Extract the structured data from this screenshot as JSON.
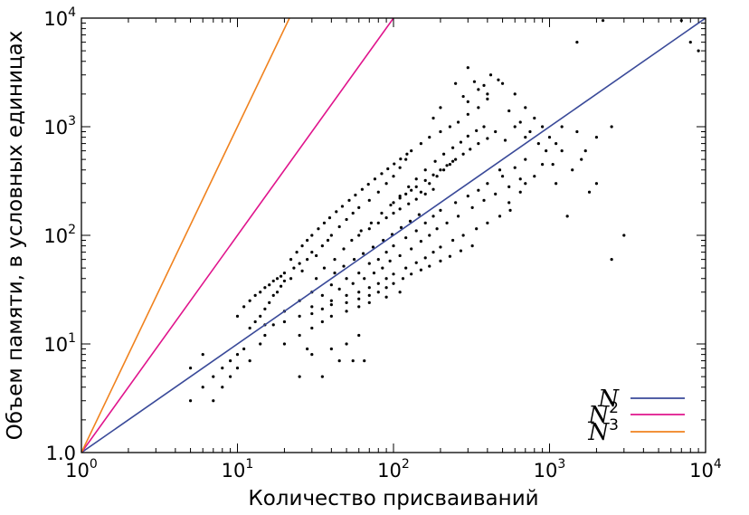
{
  "chart_data": {
    "type": "scatter",
    "xscale": "log",
    "yscale": "log",
    "xlim": [
      1,
      10000
    ],
    "ylim": [
      1,
      10000
    ],
    "grid": false,
    "legend_position": "bottom-right",
    "xlabel": "Количество присваиваний",
    "ylabel": "Объем памяти, в условных единицах",
    "x_ticks": [
      {
        "value": 1,
        "base": "10",
        "exp": "0"
      },
      {
        "value": 10,
        "base": "10",
        "exp": "1"
      },
      {
        "value": 100,
        "base": "10",
        "exp": "2"
      },
      {
        "value": 1000,
        "base": "10",
        "exp": "3"
      },
      {
        "value": 10000,
        "base": "10",
        "exp": "4"
      }
    ],
    "y_ticks": [
      {
        "value": 1,
        "label": "1.0"
      },
      {
        "value": 10,
        "base": "10",
        "exp": "1"
      },
      {
        "value": 100,
        "base": "10",
        "exp": "2"
      },
      {
        "value": 1000,
        "base": "10",
        "exp": "3"
      },
      {
        "value": 10000,
        "base": "10",
        "exp": "4"
      }
    ],
    "scatter_series": {
      "color": "#000000",
      "points": [
        [
          5,
          6
        ],
        [
          5,
          3
        ],
        [
          6,
          4
        ],
        [
          6,
          8
        ],
        [
          7,
          5
        ],
        [
          7,
          3
        ],
        [
          8,
          6
        ],
        [
          8,
          4
        ],
        [
          9,
          7
        ],
        [
          9,
          5
        ],
        [
          10,
          8
        ],
        [
          10,
          6
        ],
        [
          11,
          9
        ],
        [
          12,
          14
        ],
        [
          12,
          7
        ],
        [
          13,
          16
        ],
        [
          14,
          18
        ],
        [
          14,
          10
        ],
        [
          15,
          21
        ],
        [
          15,
          12
        ],
        [
          16,
          24
        ],
        [
          17,
          28
        ],
        [
          17,
          15
        ],
        [
          18,
          30
        ],
        [
          19,
          34
        ],
        [
          20,
          38
        ],
        [
          20,
          45
        ],
        [
          22,
          40
        ],
        [
          23,
          50
        ],
        [
          25,
          55
        ],
        [
          26,
          47
        ],
        [
          28,
          60
        ],
        [
          30,
          70
        ],
        [
          32,
          65
        ],
        [
          35,
          80
        ],
        [
          38,
          90
        ],
        [
          40,
          100
        ],
        [
          45,
          120
        ],
        [
          50,
          140
        ],
        [
          55,
          160
        ],
        [
          60,
          180
        ],
        [
          70,
          210
        ],
        [
          80,
          250
        ],
        [
          90,
          300
        ],
        [
          100,
          350
        ],
        [
          110,
          420
        ],
        [
          120,
          500
        ],
        [
          130,
          600
        ],
        [
          150,
          700
        ],
        [
          170,
          800
        ],
        [
          200,
          900
        ],
        [
          230,
          1000
        ],
        [
          260,
          1100
        ],
        [
          300,
          1300
        ],
        [
          350,
          1500
        ],
        [
          400,
          1800
        ],
        [
          250,
          2500
        ],
        [
          300,
          3500
        ],
        [
          200,
          1500
        ],
        [
          180,
          1200
        ],
        [
          30,
          30
        ],
        [
          40,
          35
        ],
        [
          50,
          40
        ],
        [
          60,
          45
        ],
        [
          70,
          55
        ],
        [
          80,
          60
        ],
        [
          90,
          70
        ],
        [
          100,
          80
        ],
        [
          120,
          95
        ],
        [
          140,
          110
        ],
        [
          160,
          130
        ],
        [
          180,
          150
        ],
        [
          200,
          170
        ],
        [
          250,
          200
        ],
        [
          300,
          230
        ],
        [
          350,
          260
        ],
        [
          400,
          300
        ],
        [
          500,
          350
        ],
        [
          600,
          420
        ],
        [
          700,
          500
        ],
        [
          25,
          25
        ],
        [
          35,
          28
        ],
        [
          45,
          32
        ],
        [
          55,
          36
        ],
        [
          65,
          40
        ],
        [
          75,
          45
        ],
        [
          85,
          50
        ],
        [
          95,
          58
        ],
        [
          110,
          65
        ],
        [
          130,
          75
        ],
        [
          150,
          88
        ],
        [
          170,
          100
        ],
        [
          190,
          115
        ],
        [
          220,
          130
        ],
        [
          260,
          150
        ],
        [
          320,
          180
        ],
        [
          380,
          210
        ],
        [
          450,
          240
        ],
        [
          550,
          280
        ],
        [
          650,
          330
        ],
        [
          20,
          20
        ],
        [
          30,
          22
        ],
        [
          40,
          25
        ],
        [
          50,
          28
        ],
        [
          60,
          30
        ],
        [
          70,
          33
        ],
        [
          80,
          36
        ],
        [
          90,
          40
        ],
        [
          100,
          44
        ],
        [
          120,
          50
        ],
        [
          140,
          56
        ],
        [
          160,
          62
        ],
        [
          180,
          70
        ],
        [
          200,
          78
        ],
        [
          240,
          90
        ],
        [
          280,
          100
        ],
        [
          340,
          115
        ],
        [
          400,
          130
        ],
        [
          480,
          150
        ],
        [
          560,
          170
        ],
        [
          15,
          15
        ],
        [
          20,
          16
        ],
        [
          25,
          18
        ],
        [
          30,
          19
        ],
        [
          35,
          21
        ],
        [
          40,
          23
        ],
        [
          50,
          24
        ],
        [
          60,
          26
        ],
        [
          70,
          28
        ],
        [
          80,
          30
        ],
        [
          90,
          33
        ],
        [
          100,
          36
        ],
        [
          115,
          40
        ],
        [
          130,
          44
        ],
        [
          150,
          48
        ],
        [
          170,
          52
        ],
        [
          200,
          58
        ],
        [
          230,
          64
        ],
        [
          270,
          72
        ],
        [
          320,
          80
        ],
        [
          20,
          10
        ],
        [
          25,
          12
        ],
        [
          30,
          14
        ],
        [
          35,
          16
        ],
        [
          40,
          18
        ],
        [
          50,
          20
        ],
        [
          60,
          22
        ],
        [
          70,
          24
        ],
        [
          90,
          27
        ],
        [
          110,
          30
        ],
        [
          30,
          8
        ],
        [
          40,
          9
        ],
        [
          50,
          10
        ],
        [
          60,
          12
        ],
        [
          45,
          7
        ],
        [
          55,
          7
        ],
        [
          65,
          7
        ],
        [
          35,
          5
        ],
        [
          25,
          5
        ],
        [
          28,
          9
        ],
        [
          32,
          40
        ],
        [
          36,
          50
        ],
        [
          42,
          60
        ],
        [
          48,
          75
        ],
        [
          54,
          90
        ],
        [
          62,
          110
        ],
        [
          72,
          130
        ],
        [
          84,
          160
        ],
        [
          96,
          190
        ],
        [
          110,
          230
        ],
        [
          125,
          280
        ],
        [
          140,
          330
        ],
        [
          160,
          400
        ],
        [
          185,
          480
        ],
        [
          210,
          560
        ],
        [
          240,
          640
        ],
        [
          270,
          720
        ],
        [
          300,
          820
        ],
        [
          340,
          920
        ],
        [
          380,
          1000
        ],
        [
          150,
          250
        ],
        [
          170,
          300
        ],
        [
          190,
          350
        ],
        [
          210,
          400
        ],
        [
          230,
          450
        ],
        [
          250,
          500
        ],
        [
          280,
          560
        ],
        [
          310,
          620
        ],
        [
          350,
          700
        ],
        [
          400,
          780
        ],
        [
          100,
          200
        ],
        [
          110,
          220
        ],
        [
          120,
          240
        ],
        [
          130,
          260
        ],
        [
          140,
          280
        ],
        [
          160,
          320
        ],
        [
          180,
          360
        ],
        [
          200,
          400
        ],
        [
          220,
          440
        ],
        [
          240,
          480
        ],
        [
          60,
          100
        ],
        [
          70,
          115
        ],
        [
          80,
          130
        ],
        [
          90,
          145
        ],
        [
          100,
          160
        ],
        [
          110,
          175
        ],
        [
          125,
          195
        ],
        [
          140,
          215
        ],
        [
          160,
          240
        ],
        [
          180,
          265
        ],
        [
          42,
          45
        ],
        [
          48,
          52
        ],
        [
          56,
          60
        ],
        [
          64,
          68
        ],
        [
          74,
          78
        ],
        [
          86,
          90
        ],
        [
          98,
          102
        ],
        [
          112,
          118
        ],
        [
          128,
          135
        ],
        [
          146,
          155
        ],
        [
          500,
          2500
        ],
        [
          600,
          2000
        ],
        [
          700,
          1500
        ],
        [
          800,
          1200
        ],
        [
          900,
          1000
        ],
        [
          1000,
          800
        ],
        [
          1200,
          600
        ],
        [
          1500,
          900
        ],
        [
          1100,
          300
        ],
        [
          1300,
          150
        ],
        [
          2000,
          300
        ],
        [
          3000,
          100
        ],
        [
          2500,
          60
        ],
        [
          1800,
          250
        ],
        [
          1400,
          400
        ],
        [
          1600,
          500
        ],
        [
          400,
          2000
        ],
        [
          300,
          1700
        ],
        [
          350,
          2200
        ],
        [
          280,
          1900
        ],
        [
          420,
          3000
        ],
        [
          470,
          2700
        ],
        [
          380,
          2400
        ],
        [
          330,
          2600
        ],
        [
          550,
          1400
        ],
        [
          650,
          1100
        ],
        [
          750,
          900
        ],
        [
          850,
          700
        ],
        [
          950,
          600
        ],
        [
          1050,
          450
        ],
        [
          7000,
          9500
        ],
        [
          8000,
          6000
        ],
        [
          9000,
          5000
        ],
        [
          1500,
          6000
        ],
        [
          2200,
          9500
        ],
        [
          600,
          1000
        ],
        [
          700,
          800
        ],
        [
          450,
          900
        ],
        [
          520,
          750
        ],
        [
          480,
          400
        ],
        [
          2500,
          1000
        ],
        [
          2000,
          800
        ],
        [
          1700,
          600
        ],
        [
          1200,
          1000
        ],
        [
          1100,
          700
        ],
        [
          900,
          450
        ],
        [
          800,
          350
        ],
        [
          700,
          300
        ],
        [
          650,
          250
        ],
        [
          550,
          200
        ],
        [
          12,
          25
        ],
        [
          14,
          30
        ],
        [
          16,
          35
        ],
        [
          18,
          40
        ],
        [
          10,
          18
        ],
        [
          11,
          22
        ],
        [
          13,
          28
        ],
        [
          15,
          33
        ],
        [
          17,
          38
        ],
        [
          19,
          42
        ],
        [
          22,
          60
        ],
        [
          24,
          70
        ],
        [
          26,
          80
        ],
        [
          28,
          90
        ],
        [
          30,
          100
        ],
        [
          33,
          115
        ],
        [
          36,
          130
        ],
        [
          39,
          145
        ],
        [
          43,
          165
        ],
        [
          47,
          185
        ],
        [
          52,
          210
        ],
        [
          57,
          235
        ],
        [
          63,
          265
        ],
        [
          69,
          295
        ],
        [
          76,
          330
        ],
        [
          84,
          370
        ],
        [
          92,
          410
        ],
        [
          101,
          455
        ],
        [
          111,
          505
        ],
        [
          122,
          560
        ]
      ]
    },
    "series": [
      {
        "name": "N",
        "exponent": 1,
        "color": "#3a4a99",
        "legend_label": "N",
        "legend_sup": ""
      },
      {
        "name": "N2",
        "exponent": 2,
        "color": "#e0148c",
        "legend_label": "N",
        "legend_sup": "2"
      },
      {
        "name": "N3",
        "exponent": 3,
        "color": "#f0821e",
        "legend_label": "N",
        "legend_sup": "3"
      }
    ]
  }
}
